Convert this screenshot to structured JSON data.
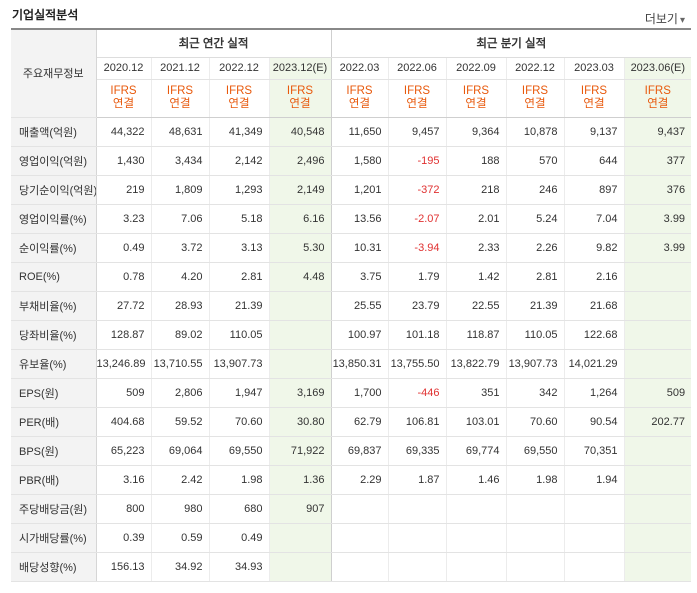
{
  "header": {
    "title": "기업실적분석",
    "more_label": "더보기",
    "more_icon": "chevron-down-icon"
  },
  "table": {
    "corner_label": "주요재무정보",
    "group_annual": "최근 연간 실적",
    "group_quarter": "최근 분기 실적",
    "periods": [
      "2020.12",
      "2021.12",
      "2022.12",
      "2023.12(E)",
      "2022.03",
      "2022.06",
      "2022.09",
      "2022.12",
      "2023.03",
      "2023.06(E)"
    ],
    "ifrs_top": "IFRS",
    "ifrs_bottom": "연결",
    "rows": [
      {
        "label": "매출액(억원)",
        "values": [
          "44,322",
          "48,631",
          "41,349",
          "40,548",
          "11,650",
          "9,457",
          "9,364",
          "10,878",
          "9,137",
          "9,437"
        ]
      },
      {
        "label": "영업이익(억원)",
        "values": [
          "1,430",
          "3,434",
          "2,142",
          "2,496",
          "1,580",
          "-195",
          "188",
          "570",
          "644",
          "377"
        ]
      },
      {
        "label": "당기순이익(억원)",
        "values": [
          "219",
          "1,809",
          "1,293",
          "2,149",
          "1,201",
          "-372",
          "218",
          "246",
          "897",
          "376"
        ]
      },
      {
        "label": "영업이익률(%)",
        "values": [
          "3.23",
          "7.06",
          "5.18",
          "6.16",
          "13.56",
          "-2.07",
          "2.01",
          "5.24",
          "7.04",
          "3.99"
        ]
      },
      {
        "label": "순이익률(%)",
        "values": [
          "0.49",
          "3.72",
          "3.13",
          "5.30",
          "10.31",
          "-3.94",
          "2.33",
          "2.26",
          "9.82",
          "3.99"
        ]
      },
      {
        "label": "ROE(%)",
        "values": [
          "0.78",
          "4.20",
          "2.81",
          "4.48",
          "3.75",
          "1.79",
          "1.42",
          "2.81",
          "2.16",
          ""
        ]
      },
      {
        "label": "부채비율(%)",
        "values": [
          "27.72",
          "28.93",
          "21.39",
          "",
          "25.55",
          "23.79",
          "22.55",
          "21.39",
          "21.68",
          ""
        ]
      },
      {
        "label": "당좌비율(%)",
        "values": [
          "128.87",
          "89.02",
          "110.05",
          "",
          "100.97",
          "101.18",
          "118.87",
          "110.05",
          "122.68",
          ""
        ]
      },
      {
        "label": "유보율(%)",
        "values": [
          "13,246.89",
          "13,710.55",
          "13,907.73",
          "",
          "13,850.31",
          "13,755.50",
          "13,822.79",
          "13,907.73",
          "14,021.29",
          ""
        ]
      },
      {
        "label": "EPS(원)",
        "values": [
          "509",
          "2,806",
          "1,947",
          "3,169",
          "1,700",
          "-446",
          "351",
          "342",
          "1,264",
          "509"
        ]
      },
      {
        "label": "PER(배)",
        "values": [
          "404.68",
          "59.52",
          "70.60",
          "30.80",
          "62.79",
          "106.81",
          "103.01",
          "70.60",
          "90.54",
          "202.77"
        ]
      },
      {
        "label": "BPS(원)",
        "values": [
          "65,223",
          "69,064",
          "69,550",
          "71,922",
          "69,837",
          "69,335",
          "69,774",
          "69,550",
          "70,351",
          ""
        ]
      },
      {
        "label": "PBR(배)",
        "values": [
          "3.16",
          "2.42",
          "1.98",
          "1.36",
          "2.29",
          "1.87",
          "1.46",
          "1.98",
          "1.94",
          ""
        ]
      },
      {
        "label": "주당배당금(원)",
        "values": [
          "800",
          "980",
          "680",
          "907",
          "",
          "",
          "",
          "",
          "",
          ""
        ]
      },
      {
        "label": "시가배당률(%)",
        "values": [
          "0.39",
          "0.59",
          "0.49",
          "",
          "",
          "",
          "",
          "",
          "",
          ""
        ]
      },
      {
        "label": "배당성향(%)",
        "values": [
          "156.13",
          "34.92",
          "34.93",
          "",
          "",
          "",
          "",
          "",
          "",
          ""
        ]
      }
    ]
  },
  "colors": {
    "ifrs": "#e8590c",
    "negative": "#e03131",
    "estimate_bg": "#f0f7e9",
    "label_bg": "#f3f3f3"
  }
}
